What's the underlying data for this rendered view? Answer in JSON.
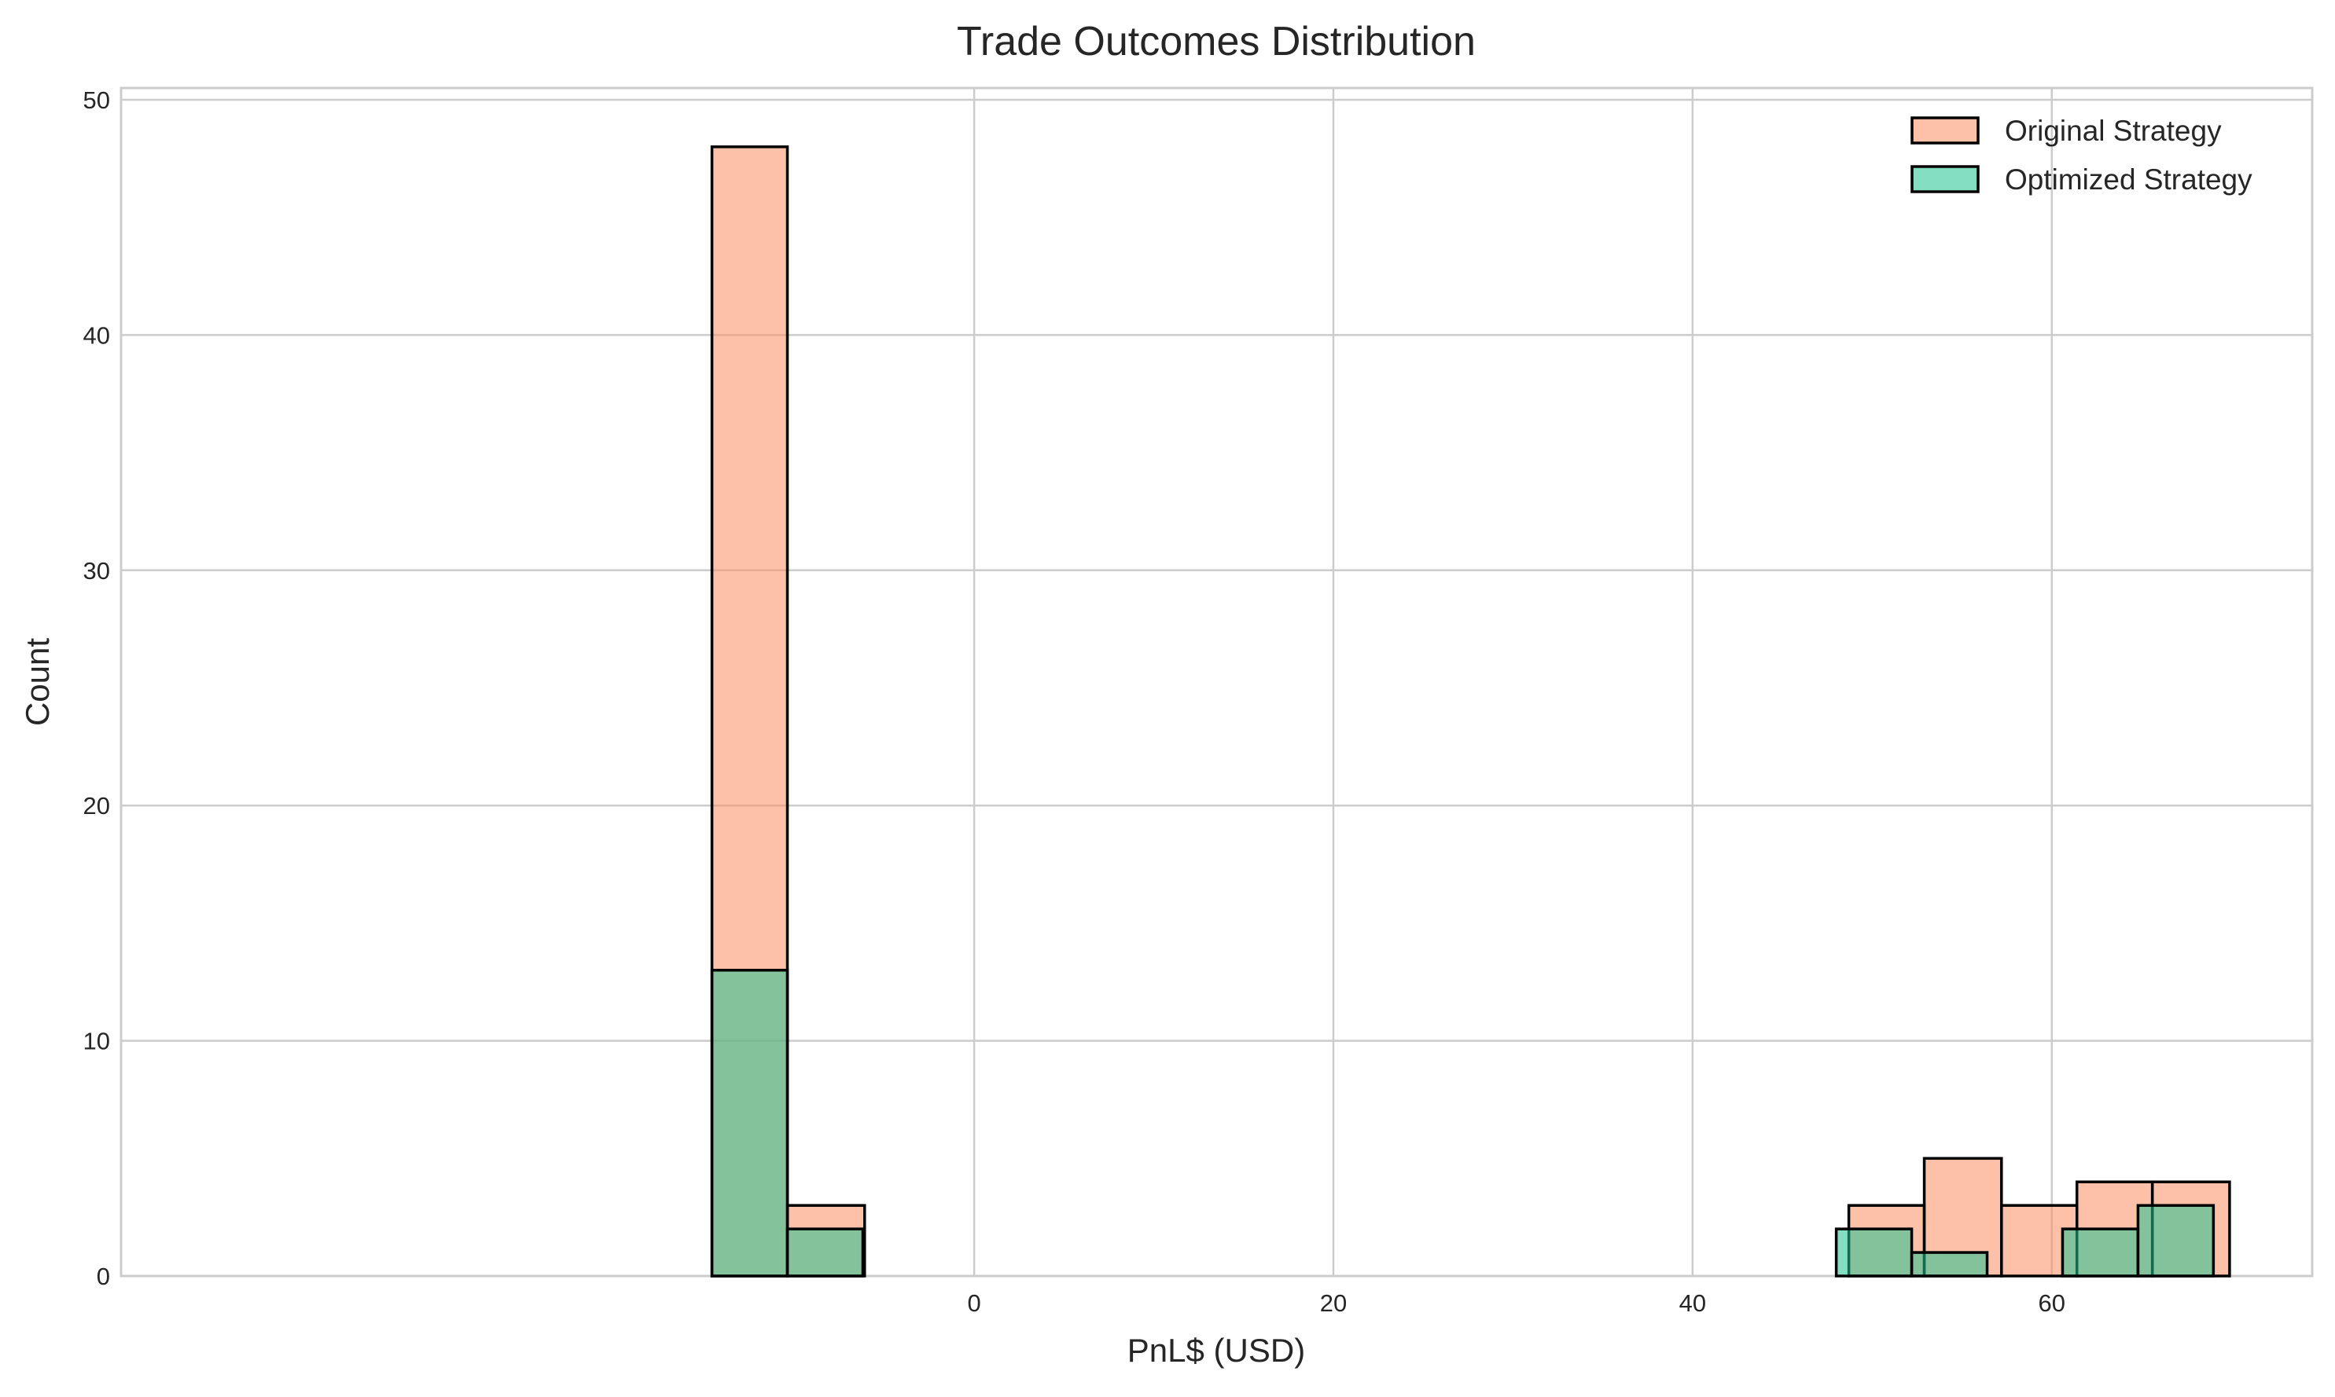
{
  "chart_data": {
    "type": "histogram",
    "title": "Trade Outcomes Distribution",
    "xlabel": "PnL$ (USD)",
    "ylabel": "Count",
    "xlim": [
      -47.5,
      74.5
    ],
    "ylim": [
      0,
      50.5
    ],
    "x_ticks": [
      0,
      20,
      40,
      60
    ],
    "y_ticks": [
      0,
      10,
      20,
      30,
      40,
      50
    ],
    "grid": true,
    "legend_position": "top-right",
    "series": [
      {
        "name": "Original Strategy",
        "color": "#fc8d62",
        "fill_opacity": 0.55,
        "bins": [
          {
            "x0": -14.6,
            "x1": -10.4,
            "count": 48
          },
          {
            "x0": -10.4,
            "x1": -6.1,
            "count": 3
          },
          {
            "x0": 48.7,
            "x1": 52.9,
            "count": 3
          },
          {
            "x0": 52.9,
            "x1": 57.2,
            "count": 5
          },
          {
            "x0": 57.2,
            "x1": 61.4,
            "count": 3
          },
          {
            "x0": 61.4,
            "x1": 65.6,
            "count": 4
          },
          {
            "x0": 65.6,
            "x1": 69.9,
            "count": 4
          }
        ]
      },
      {
        "name": "Optimized Strategy",
        "color": "#1fc28e",
        "fill_opacity": 0.55,
        "bins": [
          {
            "x0": -14.6,
            "x1": -10.4,
            "count": 13
          },
          {
            "x0": -10.4,
            "x1": -6.2,
            "count": 2
          },
          {
            "x0": 48.0,
            "x1": 52.2,
            "count": 2
          },
          {
            "x0": 52.2,
            "x1": 56.4,
            "count": 1
          },
          {
            "x0": 60.6,
            "x1": 64.8,
            "count": 2
          },
          {
            "x0": 64.8,
            "x1": 69.0,
            "count": 3
          }
        ]
      }
    ]
  }
}
